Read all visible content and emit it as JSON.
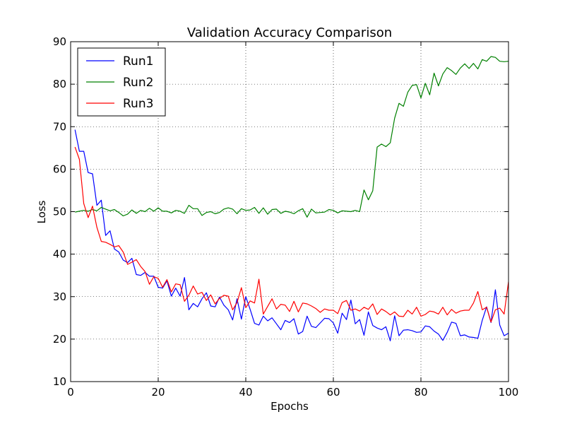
{
  "chart_data": {
    "type": "line",
    "title": "Validation Accuracy Comparison",
    "xlabel": "Epochs",
    "ylabel": "Loss",
    "xlim": [
      0,
      100
    ],
    "ylim": [
      10,
      90
    ],
    "xticks": [
      0,
      20,
      40,
      60,
      80,
      100
    ],
    "yticks": [
      10,
      20,
      30,
      40,
      50,
      60,
      70,
      80,
      90
    ],
    "grid": true,
    "legend_position": "top-left",
    "x": [
      1,
      2,
      3,
      4,
      5,
      6,
      7,
      8,
      9,
      10,
      11,
      12,
      13,
      14,
      15,
      16,
      17,
      18,
      19,
      20,
      21,
      22,
      23,
      24,
      25,
      26,
      27,
      28,
      29,
      30,
      31,
      32,
      33,
      34,
      35,
      36,
      37,
      38,
      39,
      40,
      41,
      42,
      43,
      44,
      45,
      46,
      47,
      48,
      49,
      50,
      51,
      52,
      53,
      54,
      55,
      56,
      57,
      58,
      59,
      60,
      61,
      62,
      63,
      64,
      65,
      66,
      67,
      68,
      69,
      70,
      71,
      72,
      73,
      74,
      75,
      76,
      77,
      78,
      79,
      80,
      81,
      82,
      83,
      84,
      85,
      86,
      87,
      88,
      89,
      90,
      91,
      92,
      93,
      94,
      95,
      96,
      97,
      98,
      99,
      100
    ],
    "series": [
      {
        "name": "Run1",
        "color": "#0000ff",
        "values": [
          69.3,
          64.2,
          64.2,
          59.2,
          58.9,
          51.5,
          52.7,
          44.4,
          45.5,
          41.2,
          40.5,
          38.6,
          38.0,
          39.0,
          35.2,
          35.0,
          35.7,
          34.8,
          34.8,
          32.2,
          32.0,
          33.7,
          30.1,
          32.0,
          30.1,
          34.5,
          26.9,
          28.4,
          27.6,
          29.5,
          30.9,
          27.8,
          27.6,
          29.9,
          28.0,
          26.9,
          24.5,
          29.5,
          24.7,
          30.0,
          27.0,
          23.7,
          23.3,
          25.4,
          24.3,
          25.0,
          23.6,
          22.2,
          24.4,
          23.9,
          24.8,
          21.2,
          21.8,
          25.4,
          23.0,
          22.7,
          23.8,
          24.9,
          24.8,
          23.8,
          21.4,
          26.1,
          24.6,
          29.2,
          23.6,
          24.6,
          20.9,
          26.4,
          23.2,
          22.6,
          22.2,
          22.9,
          19.6,
          25.5,
          20.8,
          22.1,
          22.2,
          22.0,
          21.6,
          21.7,
          23.1,
          22.9,
          21.9,
          21.2,
          19.7,
          21.6,
          24.0,
          23.7,
          20.8,
          21.0,
          20.5,
          20.4,
          20.2,
          24.4,
          27.6,
          23.9,
          31.6,
          23.3,
          20.8,
          21.4
        ]
      },
      {
        "name": "Run2",
        "color": "#008000",
        "values": [
          49.9,
          50.1,
          50.3,
          50.1,
          50.5,
          50.2,
          51.0,
          50.6,
          50.2,
          50.5,
          49.8,
          49.0,
          49.4,
          50.4,
          49.6,
          50.3,
          50.0,
          50.8,
          50.1,
          50.9,
          50.1,
          50.1,
          49.7,
          50.3,
          50.1,
          49.6,
          51.5,
          50.7,
          50.7,
          49.1,
          49.8,
          50.0,
          49.5,
          49.8,
          50.6,
          50.9,
          50.6,
          49.5,
          50.7,
          50.3,
          50.4,
          51.0,
          49.6,
          50.9,
          49.4,
          50.5,
          50.6,
          49.6,
          50.1,
          49.9,
          49.5,
          50.2,
          50.7,
          48.7,
          50.6,
          49.7,
          49.8,
          49.9,
          50.5,
          50.3,
          49.7,
          50.2,
          50.1,
          50.0,
          50.3,
          50.0,
          55.1,
          52.8,
          54.9,
          65.2,
          65.9,
          65.3,
          66.2,
          72.0,
          75.5,
          74.8,
          78.1,
          79.7,
          79.9,
          76.8,
          80.2,
          77.5,
          82.6,
          79.6,
          82.4,
          83.9,
          83.2,
          82.3,
          83.8,
          84.8,
          83.7,
          84.9,
          83.6,
          85.8,
          85.4,
          86.5,
          86.3,
          85.4,
          85.3,
          85.4
        ]
      },
      {
        "name": "Run3",
        "color": "#ff0000",
        "values": [
          65.2,
          62.3,
          51.9,
          48.6,
          51.3,
          46.3,
          43.0,
          42.8,
          42.3,
          41.7,
          42.0,
          40.5,
          37.6,
          38.1,
          38.7,
          37.1,
          35.9,
          32.9,
          34.7,
          34.3,
          32.2,
          34.0,
          31.1,
          33.0,
          32.8,
          28.9,
          30.3,
          32.5,
          30.6,
          31.0,
          29.1,
          30.4,
          28.3,
          29.6,
          30.3,
          30.1,
          26.9,
          28.6,
          32.1,
          27.4,
          29.0,
          28.5,
          34.1,
          25.9,
          27.7,
          29.5,
          27.1,
          28.2,
          28.0,
          26.5,
          28.9,
          26.4,
          28.5,
          28.3,
          27.8,
          27.2,
          26.3,
          27.1,
          26.8,
          26.8,
          26.0,
          28.6,
          29.1,
          26.8,
          27.1,
          26.6,
          27.5,
          27.0,
          28.3,
          25.8,
          27.1,
          26.5,
          25.7,
          26.4,
          25.4,
          25.3,
          26.8,
          25.9,
          27.5,
          25.4,
          25.8,
          26.6,
          26.4,
          25.9,
          27.5,
          25.7,
          27.0,
          26.1,
          26.6,
          26.8,
          26.8,
          28.5,
          31.2,
          26.9,
          27.5,
          24.0,
          26.9,
          27.3,
          25.9,
          33.5
        ]
      }
    ]
  }
}
